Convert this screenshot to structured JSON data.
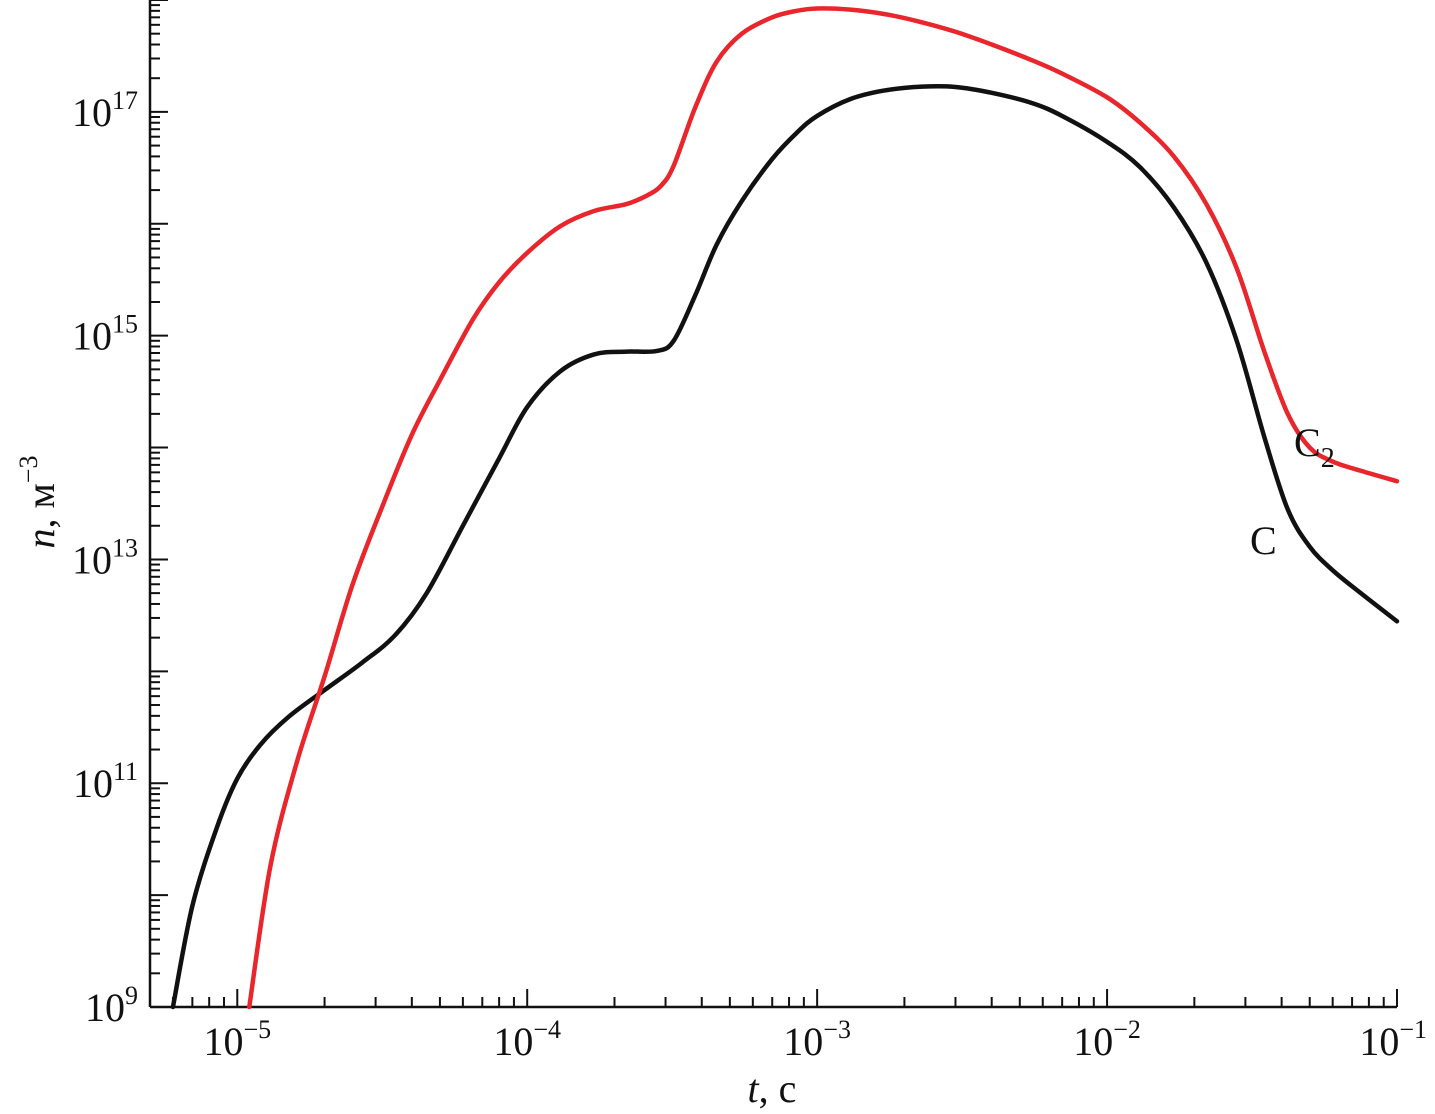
{
  "chart_data": {
    "type": "line",
    "xscale": "log",
    "yscale": "log",
    "xlim": [
      5e-06,
      0.1
    ],
    "ylim": [
      1000000000.0,
      1e+18
    ],
    "grid": false,
    "legend": "none",
    "xlabel": {
      "var": "t",
      "unit": ", с"
    },
    "ylabel": {
      "var": "n",
      "unit": ", м",
      "exp": "−3"
    },
    "xticks": [
      {
        "value": 1e-05,
        "base": "10",
        "exp": "−5"
      },
      {
        "value": 0.0001,
        "base": "10",
        "exp": "−4"
      },
      {
        "value": 0.001,
        "base": "10",
        "exp": "−3"
      },
      {
        "value": 0.01,
        "base": "10",
        "exp": "−2"
      },
      {
        "value": 0.1,
        "base": "10",
        "exp": "−1"
      }
    ],
    "yticks": [
      {
        "value": 1000000000.0,
        "base": "10",
        "exp": "9"
      },
      {
        "value": 100000000000.0,
        "base": "10",
        "exp": "11"
      },
      {
        "value": 10000000000000.0,
        "base": "10",
        "exp": "13"
      },
      {
        "value": 1000000000000000.0,
        "base": "10",
        "exp": "15"
      },
      {
        "value": 1e+17,
        "base": "10",
        "exp": "17"
      }
    ],
    "series": [
      {
        "name": "C",
        "label_main": "C",
        "label_sub": "",
        "color": "#111111",
        "x": [
          6e-06,
          7e-06,
          8.5e-06,
          1e-05,
          1.2e-05,
          1.5e-05,
          2e-05,
          2.7e-05,
          3.5e-05,
          4.5e-05,
          6e-05,
          8e-05,
          0.0001,
          0.00013,
          0.00017,
          0.00022,
          0.00028,
          0.00032,
          0.00038,
          0.00045,
          0.00055,
          0.0007,
          0.00085,
          0.001,
          0.0013,
          0.0017,
          0.0023,
          0.003,
          0.004,
          0.0055,
          0.007,
          0.01,
          0.013,
          0.017,
          0.022,
          0.028,
          0.035,
          0.042,
          0.05,
          0.06,
          0.075,
          0.1
        ],
        "y": [
          1000000000.0,
          8000000000.0,
          40000000000.0,
          110000000000.0,
          220000000000.0,
          390000000000.0,
          680000000000.0,
          1200000000000.0,
          2100000000000.0,
          5000000000000.0,
          20000000000000.0,
          80000000000000.0,
          230000000000000.0,
          480000000000000.0,
          680000000000000.0,
          720000000000000.0,
          730000000000000.0,
          900000000000000.0,
          2300000000000000.0,
          6500000000000000.0,
          1.6e+16,
          3.8e+16,
          6.5e+16,
          9.2e+16,
          1.3e+17,
          1.55e+17,
          1.68e+17,
          1.67e+17,
          1.48e+17,
          1.2e+17,
          9.2e+16,
          5.4e+16,
          3.2e+16,
          1.4e+16,
          4500000000000000.0,
          900000000000000.0,
          120000000000000.0,
          28000000000000.0,
          13000000000000.0,
          8000000000000.0,
          5000000000000.0,
          2800000000000.0
        ]
      },
      {
        "name": "C2",
        "label_main": "C",
        "label_sub": "2",
        "color": "#e8262c",
        "x": [
          1.1e-05,
          1.3e-05,
          1.6e-05,
          2e-05,
          2.5e-05,
          3.2e-05,
          4e-05,
          5e-05,
          6.5e-05,
          8e-05,
          0.0001,
          0.00013,
          0.00017,
          0.00022,
          0.00026,
          0.00029,
          0.00032,
          0.00038,
          0.00045,
          0.00055,
          0.0007,
          0.00085,
          0.001,
          0.0013,
          0.0017,
          0.0022,
          0.003,
          0.004,
          0.0055,
          0.007,
          0.01,
          0.013,
          0.017,
          0.022,
          0.028,
          0.035,
          0.042,
          0.05,
          0.06,
          0.075,
          0.1
        ],
        "y": [
          1000000000.0,
          18000000000.0,
          150000000000.0,
          900000000000.0,
          6000000000000.0,
          32000000000000.0,
          130000000000000.0,
          400000000000000.0,
          1400000000000000.0,
          3000000000000000.0,
          5500000000000000.0,
          9500000000000000.0,
          1.3e+16,
          1.5e+16,
          1.8e+16,
          2.2e+16,
          3.3e+16,
          1.1e+17,
          2.8e+17,
          5e+17,
          7e+17,
          8e+17,
          8.4e+17,
          8.2e+17,
          7.5e+17,
          6.5e+17,
          5.2e+17,
          4e+17,
          2.9e+17,
          2.2e+17,
          1.35e+17,
          8e+16,
          4e+16,
          1.5e+16,
          4000000000000000.0,
          700000000000000.0,
          200000000000000.0,
          100000000000000.0,
          75000000000000.0,
          62000000000000.0,
          50000000000000.0
        ]
      }
    ]
  }
}
